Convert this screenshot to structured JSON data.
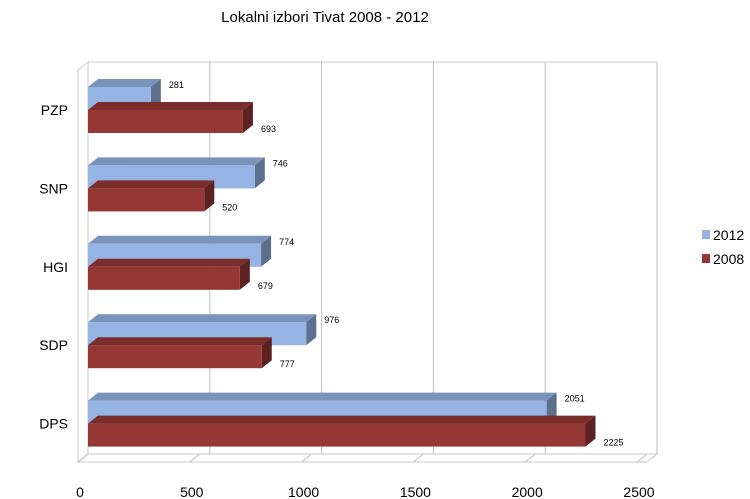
{
  "chart_data": {
    "type": "bar",
    "orientation": "horizontal",
    "title": "Lokalni izbori Tivat 2008 - 2012",
    "categories": [
      "PZP",
      "SNP",
      "HGI",
      "SDP",
      "DPS"
    ],
    "series": [
      {
        "name": "2012",
        "values": [
          281,
          746,
          774,
          976,
          2051
        ],
        "color": "#95b3e3"
      },
      {
        "name": "2008",
        "values": [
          693,
          520,
          679,
          777,
          2225
        ],
        "color": "#953735"
      }
    ],
    "x_ticks": [
      "0",
      "500",
      "1000",
      "1500",
      "2000",
      "2500"
    ],
    "xlim": [
      0,
      2500
    ],
    "grid": true,
    "legend_position": "right",
    "style": "3d"
  }
}
